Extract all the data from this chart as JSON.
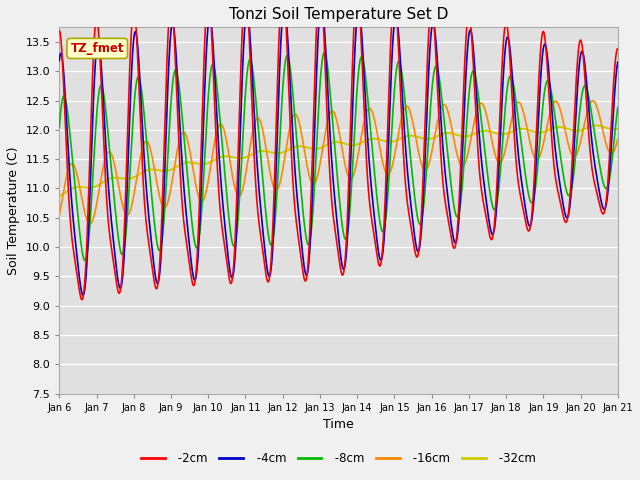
{
  "title": "Tonzi Soil Temperature Set D",
  "xlabel": "Time",
  "ylabel": "Soil Temperature (C)",
  "ylim": [
    7.5,
    13.75
  ],
  "xlim": [
    0,
    15
  ],
  "fig_bg": "#f0f0f0",
  "plot_bg": "#e0e0e0",
  "colors": {
    "-2cm": "#ff0000",
    "-4cm": "#0000cc",
    "-8cm": "#00bb00",
    "-16cm": "#ff8800",
    "-32cm": "#cccc00"
  },
  "xtick_labels": [
    "Jan 6",
    "Jan 7",
    "Jan 8",
    "Jan 9",
    "Jan 10",
    "Jan 11",
    "Jan 12",
    "Jan 13",
    "Jan 14",
    "Jan 15",
    "Jan 16",
    "Jan 17",
    "Jan 18",
    "Jan 19",
    "Jan 20",
    "Jan 21"
  ],
  "ytick_labels": [
    "7.5",
    "8.0",
    "8.5",
    "9.0",
    "9.5",
    "10.0",
    "10.5",
    "11.0",
    "11.5",
    "12.0",
    "12.5",
    "13.0",
    "13.5"
  ],
  "ytick_vals": [
    7.5,
    8.0,
    8.5,
    9.0,
    9.5,
    10.0,
    10.5,
    11.0,
    11.5,
    12.0,
    12.5,
    13.0,
    13.5
  ],
  "annotation_text": "TZ_fmet",
  "annotation_color": "#cc0000",
  "annotation_bg": "#ffffcc",
  "annotation_edge": "#aaaa00"
}
